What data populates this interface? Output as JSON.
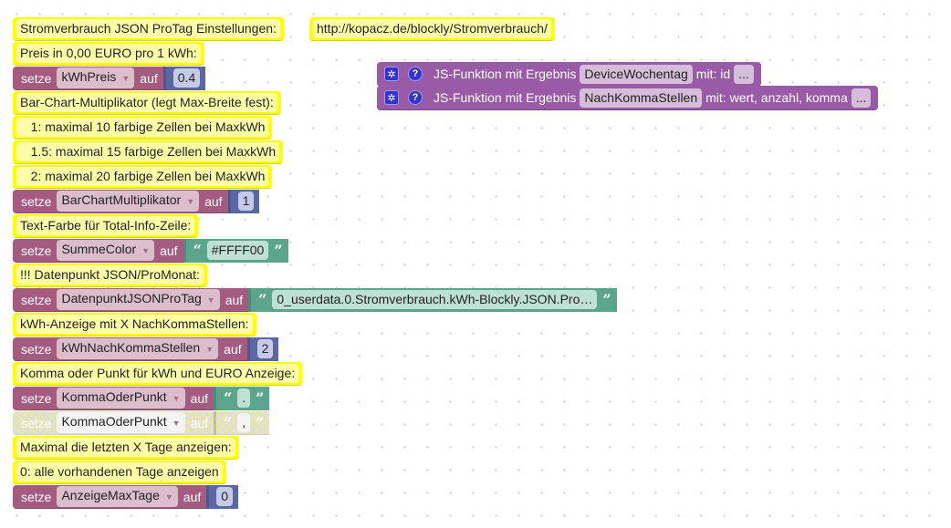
{
  "colors": {
    "comment": "#ffff00",
    "variable": "#a55b80",
    "number": "#5b67a5",
    "text": "#5ba58c",
    "function": "#995ba5"
  },
  "url_comment": "http://kopacz.de/blockly/Stromverbrauch/",
  "functions": [
    {
      "prefix": "JS-Funktion mit Ergebnis",
      "name": "DeviceWochentag",
      "params": "mit: id",
      "more": "...",
      "icons": [
        "gear-icon",
        "help-icon"
      ]
    },
    {
      "prefix": "JS-Funktion mit Ergebnis",
      "name": "NachKommaStellen",
      "params": "mit: wert, anzahl, komma",
      "more": "...",
      "icons": [
        "gear-icon",
        "help-icon"
      ]
    }
  ],
  "rows": [
    {
      "type": "comment",
      "text": "Stromverbrauch JSON ProTag Einstellungen:"
    },
    {
      "type": "comment",
      "text": "Preis in 0,00 EURO pro 1 kWh:"
    },
    {
      "type": "set",
      "kw": "setze",
      "var": "kWhPreis",
      "auf": "auf",
      "vtype": "num",
      "value": "0.4"
    },
    {
      "type": "comment",
      "text": "Bar-Chart-Multiplikator (legt Max-Breite fest):"
    },
    {
      "type": "comment",
      "text": "   1: maximal 10 farbige Zellen bei MaxkWh"
    },
    {
      "type": "comment",
      "text": "   1.5: maximal 15 farbige Zellen bei MaxkWh"
    },
    {
      "type": "comment",
      "text": "   2: maximal 20 farbige Zellen bei MaxkWh"
    },
    {
      "type": "set",
      "kw": "setze",
      "var": "BarChartMultiplikator",
      "auf": "auf",
      "vtype": "num",
      "value": "1"
    },
    {
      "type": "comment",
      "text": "Text-Farbe für Total-Info-Zeile:"
    },
    {
      "type": "set",
      "kw": "setze",
      "var": "SummeColor",
      "auf": "auf",
      "vtype": "str",
      "value": "#FFFF00"
    },
    {
      "type": "comment",
      "text": "!!! Datenpunkt JSON/ProMonat:"
    },
    {
      "type": "set",
      "kw": "setze",
      "var": "DatenpunktJSONProTag",
      "auf": "auf",
      "vtype": "str",
      "value": "0_userdata.0.Stromverbrauch.kWh-Blockly.JSON.Pro…"
    },
    {
      "type": "comment",
      "text": "kWh-Anzeige mit X NachKommaStellen:"
    },
    {
      "type": "set",
      "kw": "setze",
      "var": "kWhNachKommaStellen",
      "auf": "auf",
      "vtype": "num",
      "value": "2"
    },
    {
      "type": "comment",
      "text": "Komma oder Punkt für kWh und EURO Anzeige:"
    },
    {
      "type": "set",
      "kw": "setze",
      "var": "KommaOderPunkt",
      "auf": "auf",
      "vtype": "str",
      "value": "."
    },
    {
      "type": "set",
      "kw": "setze",
      "var": "KommaOderPunkt",
      "auf": "auf",
      "vtype": "str",
      "value": ",",
      "disabled": true
    },
    {
      "type": "comment",
      "text": "Maximal die letzten X Tage anzeigen:"
    },
    {
      "type": "comment",
      "text": "0: alle vorhandenen Tage anzeigen"
    },
    {
      "type": "set",
      "kw": "setze",
      "var": "AnzeigeMaxTage",
      "auf": "auf",
      "vtype": "num",
      "value": "0"
    }
  ]
}
